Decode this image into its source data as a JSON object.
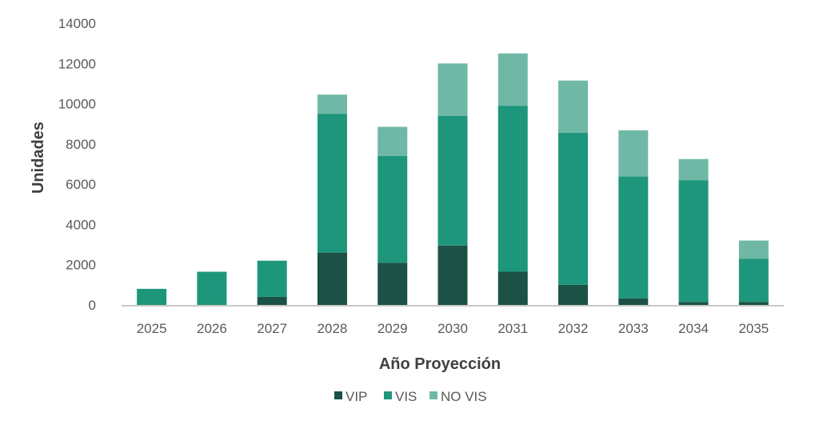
{
  "chart_data": {
    "type": "bar",
    "stacked": true,
    "xlabel": "Año Proyección",
    "ylabel": "Unidades",
    "ylim": [
      0,
      14000
    ],
    "yticks": [
      0,
      2000,
      4000,
      6000,
      8000,
      10000,
      12000,
      14000
    ],
    "grid": false,
    "legend_position": "bottom",
    "categories": [
      "2025",
      "2026",
      "2027",
      "2028",
      "2029",
      "2030",
      "2031",
      "2032",
      "2033",
      "2034",
      "2035"
    ],
    "series": [
      {
        "name": "VIP",
        "color": "#1b5245",
        "values": [
          0,
          0,
          400,
          2600,
          2100,
          2950,
          1650,
          1000,
          330,
          150,
          150
        ]
      },
      {
        "name": "VIS",
        "color": "#1e967b",
        "values": [
          800,
          1650,
          1800,
          6900,
          5300,
          6450,
          8250,
          7550,
          6050,
          6050,
          2150
        ]
      },
      {
        "name": "NO VIS",
        "color": "#6fb8a6",
        "values": [
          0,
          0,
          0,
          950,
          1450,
          2600,
          2600,
          2600,
          2300,
          1050,
          900
        ]
      }
    ]
  }
}
